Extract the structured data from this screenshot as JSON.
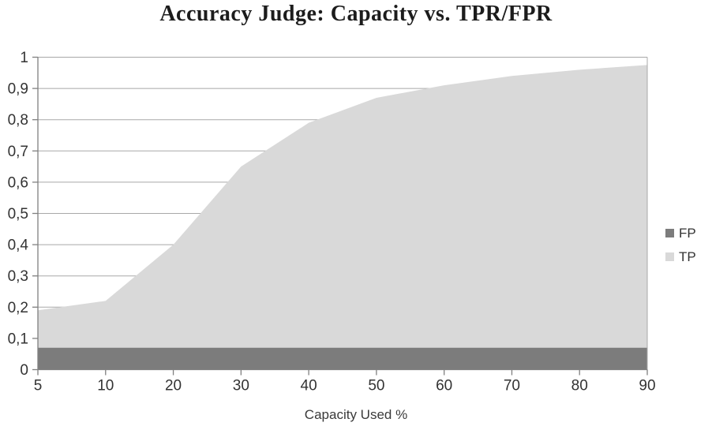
{
  "chart_data": {
    "type": "area",
    "title": "Accuracy Judge: Capacity vs. TPR/FPR",
    "xlabel": "Capacity Used %",
    "ylabel": "",
    "categories": [
      "5",
      "10",
      "20",
      "30",
      "40",
      "50",
      "60",
      "70",
      "80",
      "90"
    ],
    "y_tick_labels": [
      "0",
      "0,1",
      "0,2",
      "0,3",
      "0,4",
      "0,5",
      "0,6",
      "0,7",
      "0,8",
      "0,9",
      "1"
    ],
    "ylim": [
      0,
      1
    ],
    "grid": true,
    "legend_position": "right",
    "series": [
      {
        "name": "FP",
        "color": "#7c7c7c",
        "values": [
          0.07,
          0.07,
          0.07,
          0.07,
          0.07,
          0.07,
          0.07,
          0.07,
          0.07,
          0.07
        ]
      },
      {
        "name": "TP",
        "color": "#d9d9d9",
        "values": [
          0.19,
          0.22,
          0.4,
          0.65,
          0.79,
          0.87,
          0.91,
          0.94,
          0.96,
          0.975
        ]
      }
    ],
    "draw_order": [
      "TP",
      "FP"
    ],
    "colors": {
      "grid": "#a8a8a8",
      "axis": "#808080",
      "text": "#333333",
      "background": "#ffffff"
    }
  }
}
